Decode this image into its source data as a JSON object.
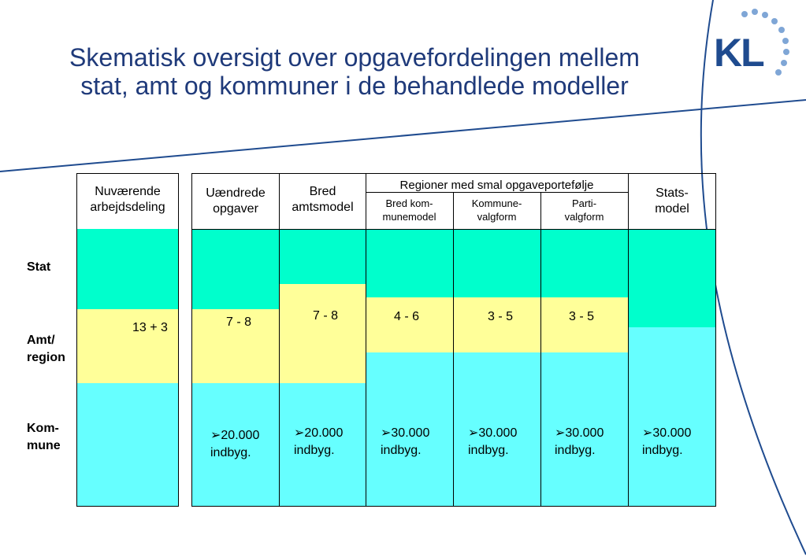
{
  "title": {
    "line1": "Skematisk oversigt over opgavefordelingen mellem",
    "line2": "stat, amt og kommuner i de behandlede modeller"
  },
  "logo": {
    "text": "KL"
  },
  "rows": {
    "stat": "Stat",
    "amt1": "Amt/",
    "amt2": "region",
    "kom1": "Kom-",
    "kom2": "mune"
  },
  "headers": {
    "current1": "Nuværende",
    "current2": "arbejdsdeling",
    "unchanged1": "Uændrede",
    "unchanged2": "opgaver",
    "broad1": "Bred",
    "broad2": "amtsmodel",
    "regions": "Regioner med smal opgaveportefølje",
    "sub_broad1": "Bred kom-",
    "sub_broad2": "munemodel",
    "sub_kom1": "Kommune-",
    "sub_kom2": "valgform",
    "sub_parti1": "Parti-",
    "sub_parti2": "valgform",
    "state1": "Stats-",
    "state2": "model"
  },
  "values": {
    "current": "13 + 3",
    "unchanged": "7 - 8",
    "broad": "7 - 8",
    "bredkom": "4 - 6",
    "kommune": "3 - 5",
    "parti": "3 - 5"
  },
  "population": {
    "unchanged": "20.000",
    "broad": "20.000",
    "bredkom": "30.000",
    "kommune": "30.000",
    "parti": "30.000",
    "state": "30.000",
    "unit": "indbyg."
  },
  "colors": {
    "stat": "#00ffcc",
    "amt": "#ffff99",
    "kommune": "#66ffff",
    "title": "#1f3a7a",
    "lines": "#1f4b8f"
  }
}
